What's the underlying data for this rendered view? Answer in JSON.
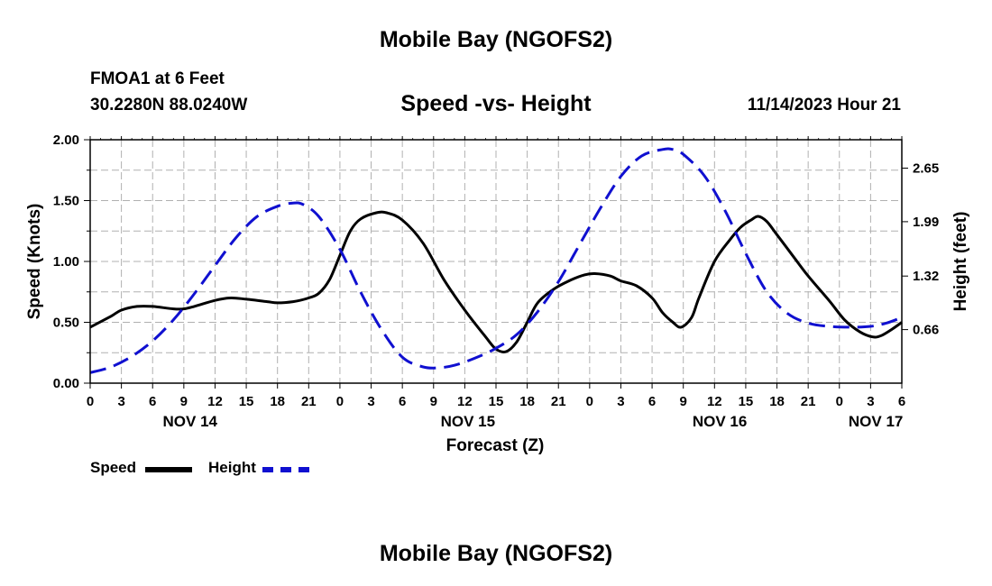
{
  "header": {
    "main_title": "Mobile Bay (NGOFS2)",
    "station": "FMOA1 at 6 Feet",
    "coordinates": "30.2280N  88.0240W",
    "chart_title": "Speed -vs- Height",
    "datetime": "11/14/2023 Hour 21"
  },
  "footer": {
    "title": "Mobile Bay (NGOFS2)"
  },
  "legend": {
    "speed_label": "Speed",
    "height_label": "Height"
  },
  "colors": {
    "speed": "#000000",
    "height": "#1010d0",
    "grid": "#b0b0b0"
  },
  "chart_data": {
    "type": "line",
    "title": "Speed -vs- Height",
    "xlabel": "Forecast (Z)",
    "ylabel": "Speed (Knots)",
    "y2label": "Height (feet)",
    "x_range_hours": [
      0,
      78
    ],
    "ylim": [
      0,
      2.0
    ],
    "y2lim": [
      0,
      3.0
    ],
    "y_ticks": [
      {
        "value": 0.0,
        "label": "0.00"
      },
      {
        "value": 0.5,
        "label": "0.50"
      },
      {
        "value": 1.0,
        "label": "1.00"
      },
      {
        "value": 1.5,
        "label": "1.50"
      },
      {
        "value": 2.0,
        "label": "2.00"
      }
    ],
    "y2_ticks": [
      {
        "value": 0.66,
        "label": "0.66"
      },
      {
        "value": 1.32,
        "label": "1.32"
      },
      {
        "value": 1.99,
        "label": "1.99"
      },
      {
        "value": 2.65,
        "label": "2.65"
      }
    ],
    "x_ticks": [
      {
        "hour": 0,
        "label": "0"
      },
      {
        "hour": 3,
        "label": "3"
      },
      {
        "hour": 6,
        "label": "6"
      },
      {
        "hour": 9,
        "label": "9"
      },
      {
        "hour": 12,
        "label": "12"
      },
      {
        "hour": 15,
        "label": "15"
      },
      {
        "hour": 18,
        "label": "18"
      },
      {
        "hour": 21,
        "label": "21"
      },
      {
        "hour": 24,
        "label": "0"
      },
      {
        "hour": 27,
        "label": "3"
      },
      {
        "hour": 30,
        "label": "6"
      },
      {
        "hour": 33,
        "label": "9"
      },
      {
        "hour": 36,
        "label": "12"
      },
      {
        "hour": 39,
        "label": "15"
      },
      {
        "hour": 42,
        "label": "18"
      },
      {
        "hour": 45,
        "label": "21"
      },
      {
        "hour": 48,
        "label": "0"
      },
      {
        "hour": 51,
        "label": "3"
      },
      {
        "hour": 54,
        "label": "6"
      },
      {
        "hour": 57,
        "label": "9"
      },
      {
        "hour": 60,
        "label": "12"
      },
      {
        "hour": 63,
        "label": "15"
      },
      {
        "hour": 66,
        "label": "18"
      },
      {
        "hour": 69,
        "label": "21"
      },
      {
        "hour": 72,
        "label": "0"
      },
      {
        "hour": 75,
        "label": "3"
      },
      {
        "hour": 78,
        "label": "6"
      }
    ],
    "day_labels": [
      {
        "hour": 9.6,
        "label": "NOV 14"
      },
      {
        "hour": 36.3,
        "label": "NOV 15"
      },
      {
        "hour": 60.5,
        "label": "NOV 16"
      },
      {
        "hour": 75.5,
        "label": "NOV 17"
      }
    ],
    "series": [
      {
        "name": "Speed",
        "axis": "left",
        "style": "solid",
        "points": [
          [
            0,
            0.46
          ],
          [
            2,
            0.55
          ],
          [
            3,
            0.6
          ],
          [
            4.5,
            0.63
          ],
          [
            6,
            0.63
          ],
          [
            8,
            0.61
          ],
          [
            9,
            0.61
          ],
          [
            10,
            0.63
          ],
          [
            12,
            0.68
          ],
          [
            13.5,
            0.7
          ],
          [
            15,
            0.69
          ],
          [
            17,
            0.67
          ],
          [
            18,
            0.66
          ],
          [
            19.5,
            0.67
          ],
          [
            21,
            0.7
          ],
          [
            22,
            0.74
          ],
          [
            23,
            0.85
          ],
          [
            24,
            1.05
          ],
          [
            25,
            1.25
          ],
          [
            26,
            1.35
          ],
          [
            27.5,
            1.4
          ],
          [
            28.5,
            1.4
          ],
          [
            30,
            1.34
          ],
          [
            32,
            1.15
          ],
          [
            34,
            0.85
          ],
          [
            36,
            0.6
          ],
          [
            38,
            0.38
          ],
          [
            39,
            0.28
          ],
          [
            40,
            0.26
          ],
          [
            41,
            0.34
          ],
          [
            42,
            0.5
          ],
          [
            43,
            0.66
          ],
          [
            44.5,
            0.77
          ],
          [
            46,
            0.84
          ],
          [
            47.5,
            0.89
          ],
          [
            48.5,
            0.9
          ],
          [
            50,
            0.88
          ],
          [
            51,
            0.84
          ],
          [
            52.5,
            0.8
          ],
          [
            54,
            0.7
          ],
          [
            55,
            0.58
          ],
          [
            56,
            0.5
          ],
          [
            56.8,
            0.46
          ],
          [
            57.8,
            0.54
          ],
          [
            58.5,
            0.7
          ],
          [
            60,
            1.0
          ],
          [
            61.5,
            1.18
          ],
          [
            62.5,
            1.28
          ],
          [
            63.5,
            1.34
          ],
          [
            64.2,
            1.37
          ],
          [
            65,
            1.33
          ],
          [
            66,
            1.22
          ],
          [
            67.5,
            1.05
          ],
          [
            69,
            0.88
          ],
          [
            71,
            0.68
          ],
          [
            72.5,
            0.52
          ],
          [
            74,
            0.42
          ],
          [
            75.2,
            0.38
          ],
          [
            76,
            0.39
          ],
          [
            77,
            0.44
          ],
          [
            78,
            0.5
          ]
        ]
      },
      {
        "name": "Height",
        "axis": "right",
        "style": "dashed",
        "points": [
          [
            0,
            0.13
          ],
          [
            2,
            0.2
          ],
          [
            4,
            0.33
          ],
          [
            6,
            0.52
          ],
          [
            8,
            0.78
          ],
          [
            10,
            1.1
          ],
          [
            12,
            1.45
          ],
          [
            14,
            1.79
          ],
          [
            16,
            2.05
          ],
          [
            18,
            2.18
          ],
          [
            19.5,
            2.22
          ],
          [
            20.5,
            2.2
          ],
          [
            22,
            2.05
          ],
          [
            24,
            1.65
          ],
          [
            26,
            1.12
          ],
          [
            28,
            0.66
          ],
          [
            30,
            0.32
          ],
          [
            32,
            0.2
          ],
          [
            33.5,
            0.19
          ],
          [
            35,
            0.22
          ],
          [
            37,
            0.31
          ],
          [
            39,
            0.43
          ],
          [
            41,
            0.6
          ],
          [
            43,
            0.88
          ],
          [
            45,
            1.25
          ],
          [
            47,
            1.7
          ],
          [
            49,
            2.15
          ],
          [
            51,
            2.55
          ],
          [
            53,
            2.8
          ],
          [
            55,
            2.88
          ],
          [
            56,
            2.88
          ],
          [
            57,
            2.82
          ],
          [
            59,
            2.56
          ],
          [
            61,
            2.13
          ],
          [
            63,
            1.6
          ],
          [
            65,
            1.13
          ],
          [
            67,
            0.86
          ],
          [
            69,
            0.74
          ],
          [
            71,
            0.7
          ],
          [
            73,
            0.69
          ],
          [
            75,
            0.7
          ],
          [
            76.5,
            0.74
          ],
          [
            78,
            0.81
          ]
        ]
      }
    ]
  }
}
